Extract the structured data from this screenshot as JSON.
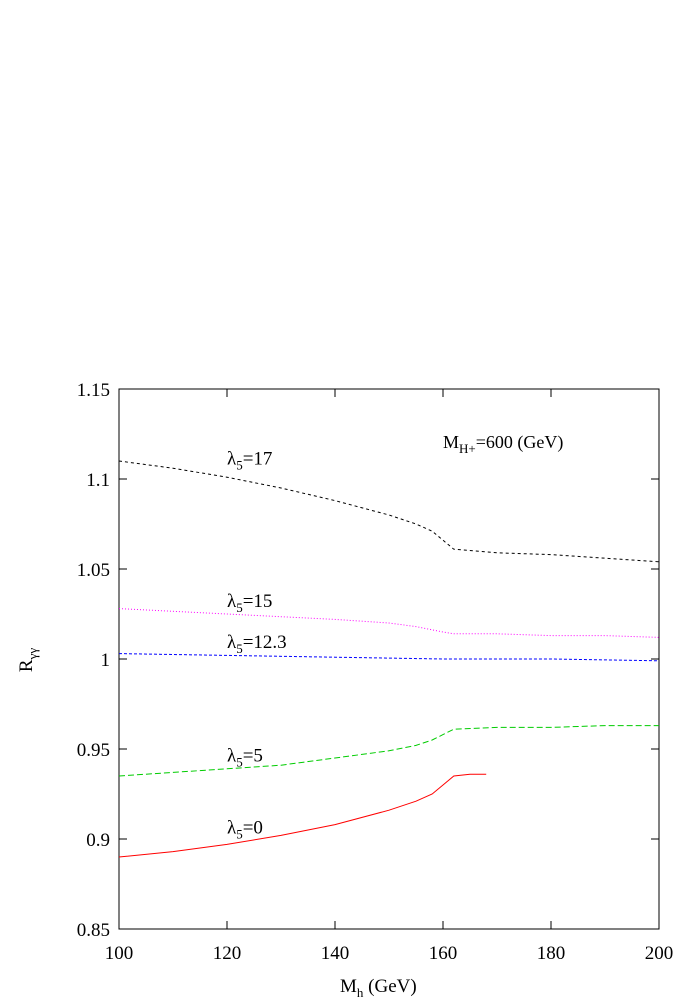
{
  "chart_data": {
    "type": "line",
    "xlabel": {
      "main": "M",
      "sub": "h",
      "suffix": " (GeV)"
    },
    "ylabel": {
      "main": "R",
      "sub": "γγ"
    },
    "xlim": [
      100,
      200
    ],
    "ylim": [
      0.85,
      1.15
    ],
    "xticks": [
      100,
      120,
      140,
      160,
      180,
      200
    ],
    "yticks": [
      0.85,
      0.9,
      0.95,
      1,
      1.05,
      1.1,
      1.15
    ],
    "xtick_labels": [
      "100",
      "120",
      "140",
      "160",
      "180",
      "200"
    ],
    "ytick_labels": [
      "0.85",
      "0.9",
      "0.95",
      "1",
      "1.05",
      "1.1",
      "1.15"
    ],
    "grid": false,
    "annotation": {
      "main": "M",
      "sub": "H+",
      "suffix": "=600 (GeV)"
    },
    "series": [
      {
        "label_main": "λ",
        "label_sub": "5",
        "label_suffix": "=17",
        "label_at": [
          120,
          1.108
        ],
        "color": "#000000",
        "dash": "3,3",
        "x": [
          100,
          110,
          120,
          130,
          140,
          150,
          155,
          158,
          160,
          162,
          170,
          180,
          190,
          200
        ],
        "y": [
          1.11,
          1.106,
          1.101,
          1.095,
          1.088,
          1.08,
          1.075,
          1.071,
          1.066,
          1.061,
          1.059,
          1.058,
          1.056,
          1.054
        ]
      },
      {
        "label_main": "λ",
        "label_sub": "5",
        "label_suffix": "=15",
        "label_at": [
          120,
          1.029
        ],
        "color": "#ff00ff",
        "dash": "1,2",
        "x": [
          100,
          120,
          140,
          150,
          155,
          160,
          162,
          170,
          180,
          190,
          200
        ],
        "y": [
          1.028,
          1.025,
          1.022,
          1.02,
          1.018,
          1.015,
          1.014,
          1.014,
          1.013,
          1.013,
          1.012
        ],
        "label": ""
      },
      {
        "label_main": "λ",
        "label_sub": "5",
        "label_suffix": "=12.3",
        "label_at": [
          120,
          1.006
        ],
        "color": "#0000ff",
        "dash": "3,2",
        "x": [
          100,
          120,
          140,
          160,
          180,
          200
        ],
        "y": [
          1.003,
          1.002,
          1.001,
          1.0,
          1.0,
          0.999
        ]
      },
      {
        "label_main": "λ",
        "label_sub": "5",
        "label_suffix": "=5",
        "label_at": [
          120,
          0.943
        ],
        "color": "#00cc00",
        "dash": "6,3",
        "x": [
          100,
          110,
          120,
          130,
          140,
          150,
          155,
          158,
          160,
          162,
          170,
          180,
          190,
          200
        ],
        "y": [
          0.935,
          0.937,
          0.939,
          0.941,
          0.945,
          0.949,
          0.952,
          0.955,
          0.958,
          0.961,
          0.962,
          0.962,
          0.963,
          0.963
        ]
      },
      {
        "label_main": "λ",
        "label_sub": "5",
        "label_suffix": "=0",
        "label_at": [
          120,
          0.903
        ],
        "color": "#ff0000",
        "dash": "",
        "x": [
          100,
          110,
          120,
          130,
          140,
          150,
          155,
          158,
          160,
          162,
          165,
          168
        ],
        "y": [
          0.89,
          0.893,
          0.897,
          0.902,
          0.908,
          0.916,
          0.921,
          0.925,
          0.93,
          0.935,
          0.936,
          0.936
        ]
      }
    ]
  }
}
